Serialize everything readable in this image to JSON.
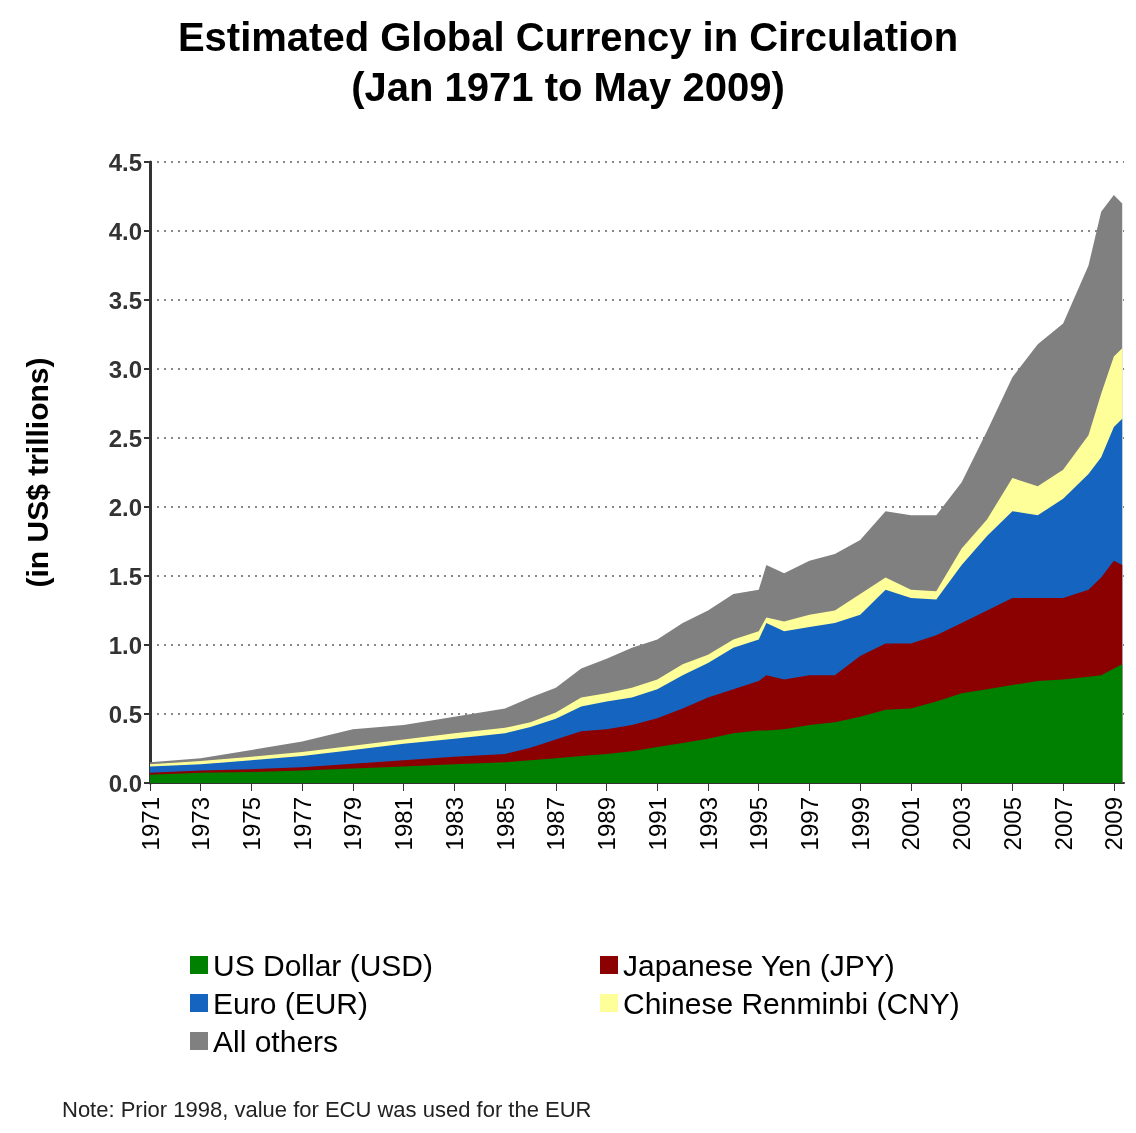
{
  "chart_data": {
    "type": "area",
    "stacked": true,
    "title": "Estimated Global Currency in Circulation",
    "subtitle": "(Jan 1971 to May 2009)",
    "ylabel": "(in US$ trillions)",
    "x": [
      1971,
      1973,
      1975,
      1977,
      1979,
      1981,
      1983,
      1985,
      1986,
      1987,
      1988,
      1989,
      1990,
      1991,
      1992,
      1993,
      1994,
      1995,
      1995.3,
      1996,
      1997,
      1998,
      1999,
      2000,
      2001,
      2002,
      2003,
      2004,
      2005,
      2006,
      2007,
      2008,
      2008.5,
      2009,
      2009.33
    ],
    "series": [
      {
        "name": "US Dollar (USD)",
        "color": "#008000",
        "values": [
          0.06,
          0.075,
          0.08,
          0.09,
          0.105,
          0.12,
          0.135,
          0.15,
          0.165,
          0.18,
          0.195,
          0.21,
          0.23,
          0.26,
          0.29,
          0.32,
          0.36,
          0.38,
          0.38,
          0.39,
          0.42,
          0.44,
          0.48,
          0.53,
          0.54,
          0.59,
          0.65,
          0.68,
          0.71,
          0.74,
          0.75,
          0.77,
          0.78,
          0.83,
          0.86
        ]
      },
      {
        "name": "Japanese Yen (JPY)",
        "color": "#8b0000",
        "values": [
          0.015,
          0.015,
          0.02,
          0.025,
          0.035,
          0.045,
          0.055,
          0.06,
          0.09,
          0.135,
          0.18,
          0.18,
          0.19,
          0.21,
          0.25,
          0.3,
          0.32,
          0.36,
          0.4,
          0.36,
          0.36,
          0.34,
          0.44,
          0.48,
          0.47,
          0.48,
          0.51,
          0.57,
          0.63,
          0.6,
          0.59,
          0.63,
          0.71,
          0.78,
          0.72
        ]
      },
      {
        "name": "Euro (EUR)",
        "color": "#1565c0",
        "values": [
          0.045,
          0.045,
          0.065,
          0.08,
          0.1,
          0.12,
          0.13,
          0.15,
          0.15,
          0.15,
          0.18,
          0.2,
          0.2,
          0.21,
          0.24,
          0.25,
          0.3,
          0.3,
          0.38,
          0.35,
          0.35,
          0.38,
          0.3,
          0.39,
          0.33,
          0.26,
          0.42,
          0.54,
          0.63,
          0.6,
          0.72,
          0.84,
          0.87,
          0.97,
          1.06
        ]
      },
      {
        "name": "Chinese Renminbi (CNY)",
        "color": "#ffff99",
        "values": [
          0.015,
          0.025,
          0.025,
          0.03,
          0.03,
          0.03,
          0.04,
          0.04,
          0.035,
          0.045,
          0.065,
          0.06,
          0.07,
          0.07,
          0.08,
          0.06,
          0.06,
          0.06,
          0.04,
          0.07,
          0.09,
          0.09,
          0.15,
          0.09,
          0.06,
          0.06,
          0.12,
          0.12,
          0.24,
          0.21,
          0.21,
          0.28,
          0.46,
          0.51,
          0.51
        ]
      },
      {
        "name": "All others",
        "color": "#808080",
        "values": [
          0.015,
          0.02,
          0.05,
          0.075,
          0.12,
          0.105,
          0.12,
          0.14,
          0.18,
          0.18,
          0.21,
          0.25,
          0.29,
          0.29,
          0.3,
          0.32,
          0.33,
          0.3,
          0.38,
          0.35,
          0.39,
          0.41,
          0.39,
          0.48,
          0.54,
          0.55,
          0.48,
          0.64,
          0.73,
          1.03,
          1.06,
          1.23,
          1.32,
          1.17,
          1.05
        ]
      }
    ],
    "xlim": [
      1971,
      2009.4
    ],
    "xticks": [
      1971,
      1973,
      1975,
      1977,
      1979,
      1981,
      1983,
      1985,
      1987,
      1989,
      1991,
      1993,
      1995,
      1997,
      1999,
      2001,
      2003,
      2005,
      2007,
      2009
    ],
    "ylim": [
      0,
      4.5
    ],
    "yticks": [
      {
        "value": 0,
        "label": "0.0"
      },
      {
        "value": 0.5,
        "label": "0.5"
      },
      {
        "value": 1,
        "label": "1.0"
      },
      {
        "value": 1.5,
        "label": "1.5"
      },
      {
        "value": 2,
        "label": "2.0"
      },
      {
        "value": 2.5,
        "label": "2.5"
      },
      {
        "value": 3,
        "label": "3.0"
      },
      {
        "value": 3.5,
        "label": "3.5"
      },
      {
        "value": 4,
        "label": "4.0"
      },
      {
        "value": 4.5,
        "label": "4.5"
      }
    ],
    "grid": "y",
    "legend": "bottom",
    "line_style": "dotted",
    "annotations": [
      "Note: Prior 1998, value for ECU was used for the EUR"
    ]
  }
}
